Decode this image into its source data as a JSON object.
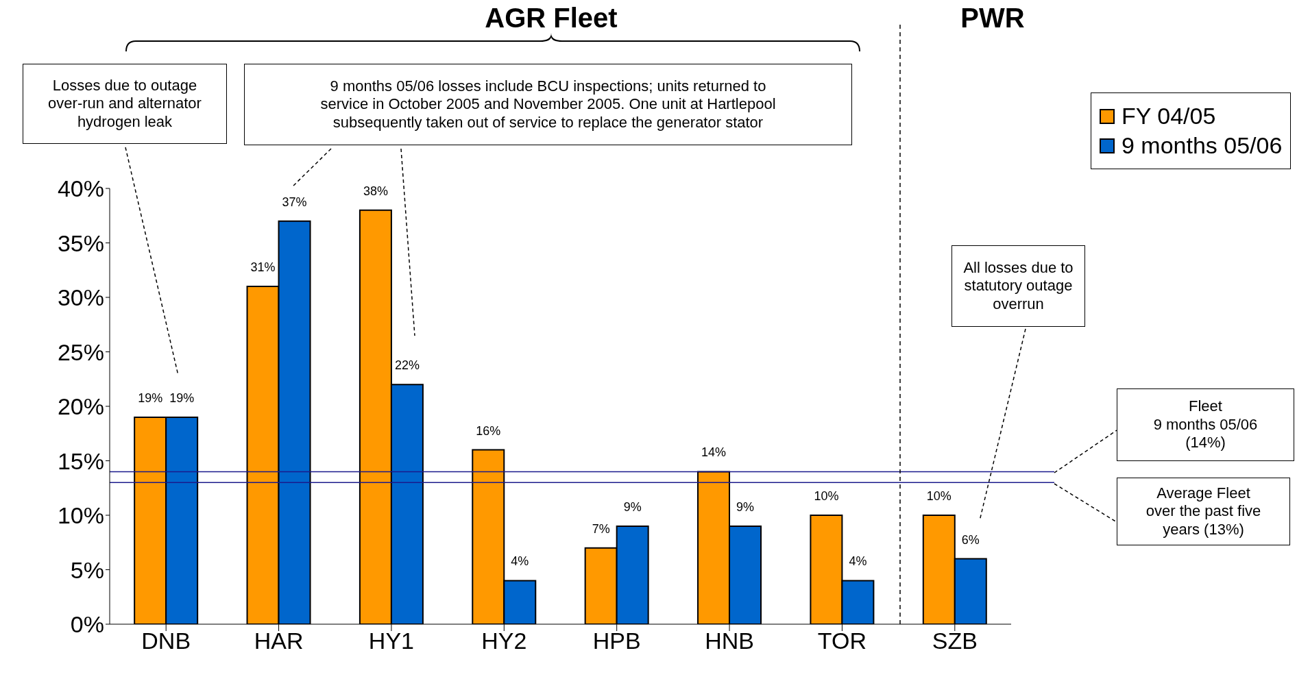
{
  "chart_data": {
    "type": "bar",
    "categories": [
      "DNB",
      "HAR",
      "HY1",
      "HY2",
      "HPB",
      "HNB",
      "TOR",
      "SZB"
    ],
    "series": [
      {
        "name": "FY 04/05",
        "color": "#ff9900",
        "values": [
          19,
          31,
          38,
          16,
          7,
          14,
          10,
          10
        ],
        "value_labels": [
          "19%",
          "31%",
          "38%",
          "16%",
          "7%",
          "14%",
          "10%",
          "10%"
        ]
      },
      {
        "name": "9 months 05/06",
        "color": "#0066cc",
        "values": [
          19,
          37,
          22,
          4,
          9,
          9,
          4,
          6
        ],
        "value_labels": [
          "19%",
          "37%",
          "22%",
          "4%",
          "9%",
          "9%",
          "4%",
          "6%"
        ]
      }
    ],
    "ylim": [
      0,
      40
    ],
    "yticks": [
      {
        "value": 0,
        "label": "0%"
      },
      {
        "value": 5,
        "label": "5%"
      },
      {
        "value": 10,
        "label": "10%"
      },
      {
        "value": 15,
        "label": "15%"
      },
      {
        "value": 20,
        "label": "20%"
      },
      {
        "value": 25,
        "label": "25%"
      },
      {
        "value": 30,
        "label": "30%"
      },
      {
        "value": 35,
        "label": "35%"
      },
      {
        "value": 40,
        "label": "40%"
      }
    ],
    "ref_lines": [
      {
        "axis": "y",
        "value": 14,
        "color": "#1a1a8c"
      },
      {
        "axis": "y",
        "value": 13,
        "color": "#1a1a8c"
      }
    ],
    "annotations": [
      "AGR Fleet",
      "PWR",
      "Losses due to outage\nover-run and alternator\nhydrogen leak",
      "9 months 05/06 losses include BCU inspections; units returned to\nservice in October 2005 and November 2005.  One unit at Hartlepool\nsubsequently taken out of service to replace the generator stator",
      "All losses due to\nstatutory outage\noverrun",
      "Fleet\n9 months 05/06\n(14%)",
      "Average Fleet\nover the past five\nyears (13%)"
    ],
    "grid": false,
    "legend": "top right"
  }
}
